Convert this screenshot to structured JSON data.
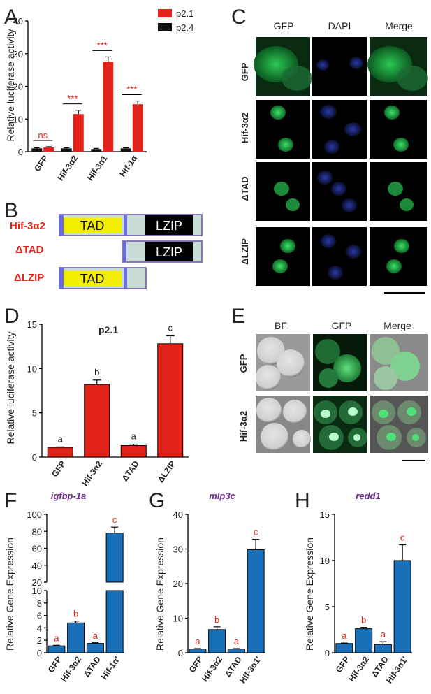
{
  "colors": {
    "red": "#e2231a",
    "black": "#111111",
    "blue": "#1a70b8",
    "green": "#2fd15a",
    "purple": "#6a2c8c",
    "tad": "#f4ee00",
    "lzip": "#000000",
    "box": "#c9dcd6"
  },
  "panel_labels": {
    "A": "A",
    "B": "B",
    "C": "C",
    "D": "D",
    "E": "E",
    "F": "F",
    "G": "G",
    "H": "H"
  },
  "panel_A": {
    "ylabel": "Relative luciferase activity",
    "legend": [
      {
        "label": "p2.1",
        "color": "#e2231a"
      },
      {
        "label": "p2.4",
        "color": "#111111"
      }
    ],
    "yticks": [
      "0",
      "10",
      "20",
      "30",
      "40"
    ],
    "categories": [
      "GFP",
      "Hif-3α2",
      "Hif-3α1",
      "Hif-1α"
    ],
    "significance": [
      "ns",
      "***",
      "***",
      "***"
    ]
  },
  "panel_B": {
    "constructs": [
      "Hif-3α2",
      "ΔTAD",
      "ΔLZIP"
    ],
    "domains": {
      "tad": "TAD",
      "lzip": "LZIP"
    }
  },
  "panel_C": {
    "columns": [
      "GFP",
      "DAPI",
      "Merge"
    ],
    "rows": [
      "GFP",
      "Hif-3α2",
      "ΔTAD",
      "ΔLZIP"
    ]
  },
  "panel_D": {
    "title": "p2.1",
    "ylabel": "Relative luciferase activity",
    "yticks": [
      "0",
      "5",
      "10",
      "15"
    ],
    "categories": [
      "GFP",
      "Hif-3α2",
      "ΔTAD",
      "ΔLZIP"
    ],
    "letters": [
      "a",
      "b",
      "a",
      "c"
    ]
  },
  "panel_E": {
    "columns": [
      "BF",
      "GFP",
      "Merge"
    ],
    "rows": [
      "GFP",
      "Hif-3α2"
    ]
  },
  "panel_F": {
    "gene": "igfbp-1a",
    "ylabel": "Relative Gene Expression",
    "yticks_low": [
      "0",
      "2",
      "4",
      "6",
      "8",
      "10"
    ],
    "yticks_high": [
      "20",
      "40",
      "60",
      "80",
      "100"
    ],
    "categories": [
      "GFP",
      "Hif-3α2",
      "ΔTAD",
      "Hif-1α'"
    ],
    "letters": [
      "a",
      "b",
      "a",
      "c"
    ]
  },
  "panel_G": {
    "gene": "mlp3c",
    "ylabel": "Relative Gene Expression",
    "yticks": [
      "0",
      "10",
      "20",
      "30",
      "40"
    ],
    "categories": [
      "GFP",
      "Hif-3α2",
      "ΔTAD",
      "Hif-3α1'"
    ],
    "letters": [
      "a",
      "b",
      "a",
      "c"
    ]
  },
  "panel_H": {
    "gene": "redd1",
    "ylabel": "Relative Gene Expression",
    "yticks": [
      "0",
      "5",
      "10",
      "15"
    ],
    "categories": [
      "GFP",
      "Hif-3α2",
      "ΔTAD",
      "Hif-3α1'"
    ],
    "letters": [
      "a",
      "b",
      "a",
      "c"
    ]
  },
  "chart_data": [
    {
      "type": "bar",
      "categories": [
        "GFP",
        "Hif-3α2",
        "Hif-3α1",
        "Hif-1α"
      ],
      "series": [
        {
          "name": "p2.1",
          "values": [
            1.3,
            11.5,
            27.5,
            14.5
          ],
          "errors": [
            0.2,
            1.2,
            1.5,
            1.0
          ]
        },
        {
          "name": "p2.4",
          "values": [
            1.0,
            1.0,
            0.8,
            1.0
          ],
          "errors": [
            0.2,
            0.2,
            0.2,
            0.2
          ]
        }
      ],
      "ylabel": "Relative luciferase activity",
      "ylim": [
        0,
        40
      ],
      "legend": "top-right"
    },
    {
      "type": "bar",
      "title": "p2.1",
      "categories": [
        "GFP",
        "Hif-3α2",
        "ΔTAD",
        "ΔLZIP"
      ],
      "values": [
        1.1,
        8.2,
        1.3,
        12.8
      ],
      "errors": [
        0.05,
        0.5,
        0.15,
        0.9
      ],
      "ylabel": "Relative luciferase activity",
      "ylim": [
        0,
        15
      ]
    },
    {
      "type": "bar",
      "title": "igfbp-1a",
      "categories": [
        "GFP",
        "Hif-3α2",
        "ΔTAD",
        "Hif-1α'"
      ],
      "values": [
        1.1,
        4.8,
        1.5,
        78
      ],
      "errors": [
        0.1,
        0.3,
        0.1,
        7
      ],
      "ylabel": "Relative Gene Expression",
      "ylim": [
        0,
        100
      ]
    },
    {
      "type": "bar",
      "title": "mlp3c",
      "categories": [
        "GFP",
        "Hif-3α2",
        "ΔTAD",
        "Hif-3α1'"
      ],
      "values": [
        1.1,
        6.7,
        1.1,
        29.8
      ],
      "errors": [
        0.1,
        0.8,
        0.1,
        3.0
      ],
      "ylabel": "Relative Gene Expression",
      "ylim": [
        0,
        40
      ]
    },
    {
      "type": "bar",
      "title": "redd1",
      "categories": [
        "GFP",
        "Hif-3α2",
        "ΔTAD",
        "Hif-3α1'"
      ],
      "values": [
        1.0,
        2.6,
        0.9,
        10.0
      ],
      "errors": [
        0.05,
        0.15,
        0.3,
        1.7
      ],
      "ylabel": "Relative Gene Expression",
      "ylim": [
        0,
        15
      ]
    }
  ]
}
